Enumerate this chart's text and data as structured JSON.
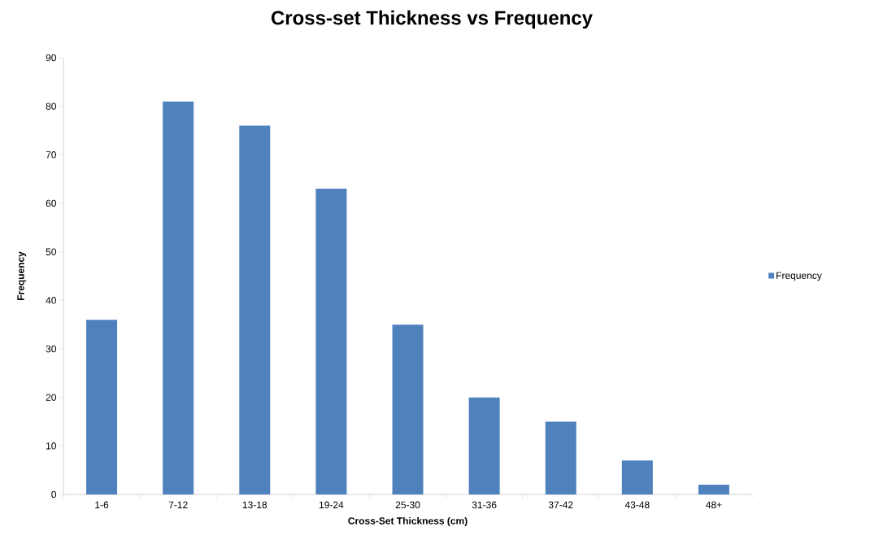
{
  "chart_data": {
    "type": "bar",
    "title": "Cross-set Thickness vs Frequency",
    "xlabel": "Cross-Set Thickness (cm)",
    "ylabel": "Frequency",
    "categories": [
      "1-6",
      "7-12",
      "13-18",
      "19-24",
      "25-30",
      "31-36",
      "37-42",
      "43-48",
      "48+"
    ],
    "series": [
      {
        "name": "Frequency",
        "color": "#4f81bd",
        "values": [
          36,
          81,
          76,
          63,
          35,
          20,
          15,
          7,
          2
        ]
      }
    ],
    "ylim": [
      0,
      90
    ],
    "yticks": [
      0,
      10,
      20,
      30,
      40,
      50,
      60,
      70,
      80,
      90
    ],
    "grid": false,
    "legend": "right"
  }
}
